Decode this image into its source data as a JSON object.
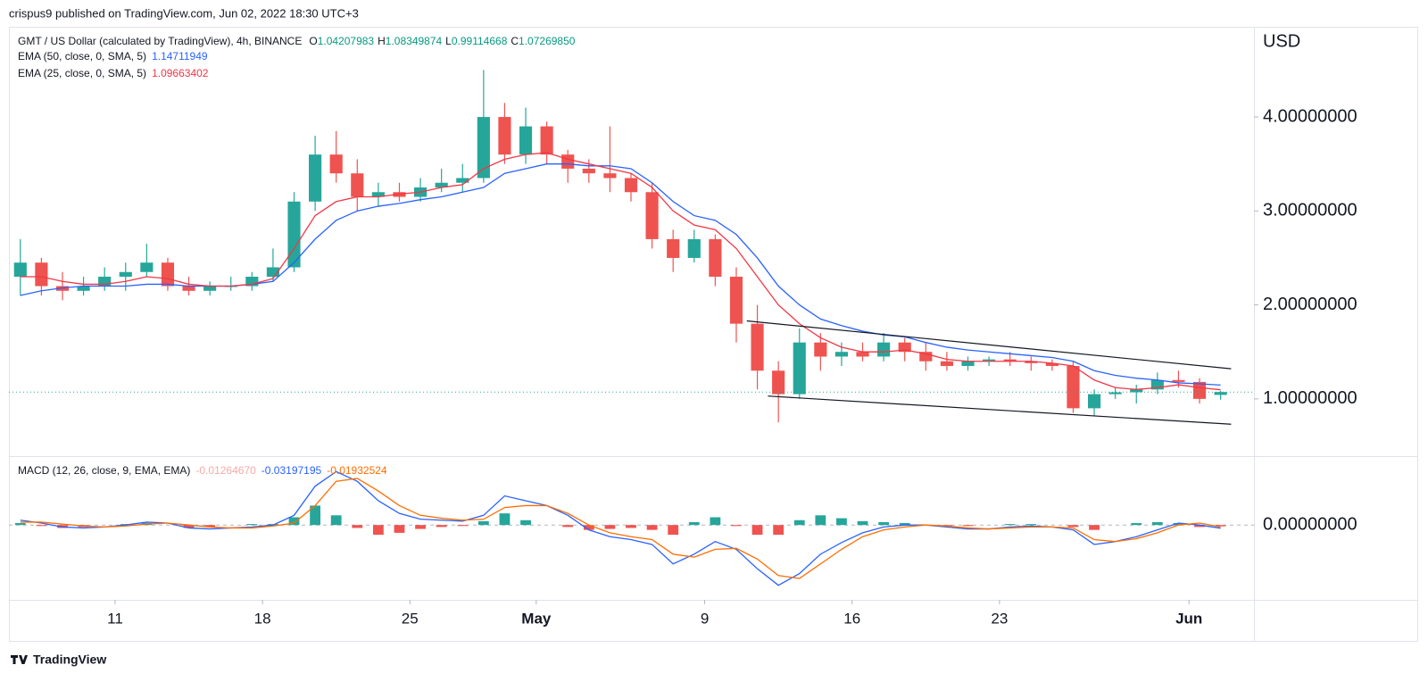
{
  "header": "crispus9 published on TradingView.com, Jun 02, 2022 18:30 UTC+3",
  "footer": "TradingView",
  "chart_data": {
    "type": "candlestick",
    "title": "GMT / US Dollar (calculated by TradingView), 4h, BINANCE",
    "ohlc_legend": [
      {
        "key": "O",
        "text": "1.04207983"
      },
      {
        "key": "H",
        "text": "1.08349874"
      },
      {
        "key": "L",
        "text": "0.99114668"
      },
      {
        "key": "C",
        "text": "1.07269850"
      }
    ],
    "currency": "USD",
    "x": [
      "2022-04-06",
      "2022-04-07",
      "2022-04-08",
      "2022-04-09",
      "2022-04-10",
      "2022-04-11",
      "2022-04-12",
      "2022-04-13",
      "2022-04-14",
      "2022-04-15",
      "2022-04-16",
      "2022-04-17",
      "2022-04-18",
      "2022-04-19",
      "2022-04-20",
      "2022-04-21",
      "2022-04-22",
      "2022-04-23",
      "2022-04-24",
      "2022-04-25",
      "2022-04-26",
      "2022-04-27",
      "2022-04-28",
      "2022-04-29",
      "2022-04-30",
      "2022-05-01",
      "2022-05-02",
      "2022-05-03",
      "2022-05-04",
      "2022-05-05",
      "2022-05-06",
      "2022-05-07",
      "2022-05-08",
      "2022-05-09",
      "2022-05-10",
      "2022-05-11",
      "2022-05-12",
      "2022-05-13",
      "2022-05-14",
      "2022-05-15",
      "2022-05-16",
      "2022-05-17",
      "2022-05-18",
      "2022-05-19",
      "2022-05-20",
      "2022-05-21",
      "2022-05-22",
      "2022-05-23",
      "2022-05-24",
      "2022-05-25",
      "2022-05-26",
      "2022-05-27",
      "2022-05-28",
      "2022-05-29",
      "2022-05-30",
      "2022-05-31",
      "2022-06-01",
      "2022-06-02"
    ],
    "open": [
      2.3,
      2.45,
      2.2,
      2.15,
      2.2,
      2.3,
      2.35,
      2.45,
      2.2,
      2.15,
      2.2,
      2.2,
      2.3,
      2.4,
      3.1,
      3.6,
      3.4,
      3.15,
      3.2,
      3.15,
      3.25,
      3.3,
      3.35,
      4.0,
      3.6,
      3.9,
      3.6,
      3.45,
      3.4,
      3.35,
      3.2,
      2.7,
      2.5,
      2.7,
      2.3,
      1.8,
      1.3,
      1.05,
      1.6,
      1.45,
      1.5,
      1.45,
      1.6,
      1.5,
      1.4,
      1.35,
      1.4,
      1.42,
      1.4,
      1.38,
      1.35,
      0.9,
      1.05,
      1.07,
      1.1,
      1.2,
      1.18,
      1.04207983
    ],
    "high": [
      2.7,
      2.5,
      2.35,
      2.3,
      2.4,
      2.45,
      2.65,
      2.5,
      2.3,
      2.25,
      2.3,
      2.35,
      2.6,
      3.2,
      3.8,
      3.85,
      3.55,
      3.3,
      3.3,
      3.35,
      3.45,
      3.5,
      4.5,
      4.15,
      4.1,
      3.95,
      3.65,
      3.55,
      3.9,
      3.4,
      3.3,
      2.8,
      2.8,
      2.75,
      2.4,
      2.0,
      1.4,
      1.75,
      1.7,
      1.6,
      1.6,
      1.7,
      1.65,
      1.6,
      1.5,
      1.45,
      1.45,
      1.5,
      1.45,
      1.42,
      1.4,
      1.1,
      1.12,
      1.15,
      1.28,
      1.3,
      1.22,
      1.08349874
    ],
    "low": [
      2.1,
      2.1,
      2.05,
      2.1,
      2.15,
      2.15,
      2.3,
      2.15,
      2.1,
      2.1,
      2.15,
      2.15,
      2.25,
      2.35,
      3.0,
      3.3,
      3.0,
      3.05,
      3.1,
      3.1,
      3.2,
      3.2,
      3.3,
      3.5,
      3.5,
      3.5,
      3.3,
      3.3,
      3.2,
      3.1,
      2.6,
      2.35,
      2.45,
      2.2,
      1.6,
      1.1,
      0.75,
      1.0,
      1.3,
      1.35,
      1.4,
      1.4,
      1.4,
      1.3,
      1.3,
      1.3,
      1.35,
      1.35,
      1.3,
      1.3,
      0.85,
      0.82,
      1.0,
      0.95,
      1.05,
      1.12,
      0.95,
      0.99114668
    ],
    "close": [
      2.45,
      2.2,
      2.15,
      2.2,
      2.3,
      2.35,
      2.45,
      2.2,
      2.15,
      2.2,
      2.2,
      2.3,
      2.4,
      3.1,
      3.6,
      3.4,
      3.15,
      3.2,
      3.15,
      3.25,
      3.3,
      3.35,
      4.0,
      3.6,
      3.9,
      3.6,
      3.45,
      3.4,
      3.35,
      3.2,
      2.7,
      2.5,
      2.7,
      2.3,
      1.8,
      1.3,
      1.05,
      1.6,
      1.45,
      1.5,
      1.45,
      1.6,
      1.5,
      1.4,
      1.35,
      1.4,
      1.42,
      1.4,
      1.38,
      1.35,
      0.9,
      1.05,
      1.07,
      1.1,
      1.2,
      1.18,
      1.0,
      1.0726985
    ],
    "up_color": "#26a69a",
    "down_color": "#ef5350",
    "series": [
      {
        "name": "EMA (50, close, 0, SMA, 5)",
        "color": "#2962ff",
        "values": [
          2.1,
          2.15,
          2.18,
          2.2,
          2.2,
          2.2,
          2.22,
          2.22,
          2.2,
          2.2,
          2.2,
          2.22,
          2.25,
          2.45,
          2.7,
          2.9,
          3.0,
          3.05,
          3.08,
          3.12,
          3.15,
          3.2,
          3.25,
          3.4,
          3.45,
          3.5,
          3.5,
          3.48,
          3.48,
          3.45,
          3.3,
          3.1,
          2.95,
          2.9,
          2.75,
          2.5,
          2.2,
          2.0,
          1.85,
          1.78,
          1.72,
          1.68,
          1.66,
          1.6,
          1.55,
          1.52,
          1.5,
          1.48,
          1.46,
          1.44,
          1.4,
          1.3,
          1.25,
          1.22,
          1.2,
          1.17,
          1.16,
          1.14711949
        ]
      },
      {
        "name": "EMA (25, close, 0, SMA, 5)",
        "color": "#f23645",
        "values": [
          2.3,
          2.3,
          2.25,
          2.22,
          2.22,
          2.25,
          2.3,
          2.28,
          2.22,
          2.2,
          2.2,
          2.22,
          2.28,
          2.6,
          2.95,
          3.1,
          3.15,
          3.15,
          3.18,
          3.2,
          3.25,
          3.28,
          3.45,
          3.55,
          3.6,
          3.62,
          3.55,
          3.5,
          3.45,
          3.4,
          3.25,
          3.0,
          2.85,
          2.8,
          2.6,
          2.3,
          2.0,
          1.8,
          1.65,
          1.55,
          1.5,
          1.5,
          1.52,
          1.48,
          1.42,
          1.4,
          1.4,
          1.4,
          1.4,
          1.38,
          1.35,
          1.2,
          1.12,
          1.1,
          1.12,
          1.15,
          1.12,
          1.09663402
        ]
      }
    ],
    "ylim": [
      0.4,
      4.96
    ],
    "yticks": [
      {
        "value": 1,
        "label": "1.00000000"
      },
      {
        "value": 2,
        "label": "2.00000000"
      },
      {
        "value": 3,
        "label": "3.00000000"
      },
      {
        "value": 4,
        "label": "4.00000000"
      }
    ],
    "xlim": [
      "2022-04-06",
      "2022-06-04"
    ],
    "xticks": [
      {
        "value": "2022-04-11",
        "label": "11"
      },
      {
        "value": "2022-04-18",
        "label": "18"
      },
      {
        "value": "2022-04-25",
        "label": "25"
      },
      {
        "value": "2022-05-01",
        "label": "May"
      },
      {
        "value": "2022-05-09",
        "label": "9"
      },
      {
        "value": "2022-05-16",
        "label": "16"
      },
      {
        "value": "2022-05-23",
        "label": "23"
      },
      {
        "value": "2022-06-01",
        "label": "Jun"
      }
    ],
    "trendlines": [
      {
        "x": [
          "2022-05-11",
          "2022-06-03"
        ],
        "y": [
          1.83,
          1.32
        ]
      },
      {
        "x": [
          "2022-05-12",
          "2022-06-03"
        ],
        "y": [
          1.03,
          0.73
        ]
      }
    ],
    "macd": {
      "title": "MACD (12, 26, close, 9, EMA, EMA)",
      "ylim": [
        -0.77,
        0.7
      ],
      "yticks": [
        {
          "value": 0,
          "label": "0.00000000"
        }
      ],
      "histogram": {
        "up_color": "#26a69a",
        "down_color": "#ef5350",
        "legend_color": "#f7a9a7",
        "legend_value": "-0.01264670",
        "values": [
          0.02,
          -0.01,
          -0.03,
          -0.02,
          0,
          0.01,
          0.02,
          0,
          -0.03,
          -0.02,
          0,
          0.01,
          0.01,
          0.08,
          0.2,
          0.1,
          -0.03,
          -0.1,
          -0.08,
          -0.04,
          -0.02,
          -0.01,
          0.04,
          0.12,
          0.05,
          0,
          -0.02,
          -0.05,
          -0.04,
          -0.03,
          -0.05,
          -0.1,
          0.03,
          0.08,
          -0.01,
          -0.1,
          -0.1,
          0.05,
          0.1,
          0.07,
          0.04,
          0.03,
          0.02,
          0,
          -0.01,
          -0.01,
          0,
          0.01,
          0.01,
          0,
          -0.02,
          -0.05,
          0,
          0.02,
          0.03,
          0.02,
          -0.02,
          -0.0126467
        ]
      },
      "macd_line": {
        "color": "#2962ff",
        "values": [
          0.05,
          0.02,
          -0.02,
          -0.03,
          -0.02,
          0,
          0.03,
          0.02,
          -0.03,
          -0.04,
          -0.03,
          -0.02,
          0,
          0.1,
          0.4,
          0.55,
          0.45,
          0.25,
          0.12,
          0.06,
          0.05,
          0.04,
          0.1,
          0.3,
          0.25,
          0.2,
          0.1,
          -0.05,
          -0.12,
          -0.15,
          -0.2,
          -0.4,
          -0.3,
          -0.17,
          -0.25,
          -0.45,
          -0.62,
          -0.5,
          -0.3,
          -0.18,
          -0.08,
          -0.02,
          0,
          0,
          -0.02,
          -0.04,
          -0.04,
          -0.02,
          -0.01,
          -0.02,
          -0.05,
          -0.2,
          -0.17,
          -0.12,
          -0.05,
          0.02,
          0,
          -0.03197195
        ]
      },
      "signal_line": {
        "color": "#ff6d00",
        "values": [
          0.03,
          0.03,
          0.01,
          -0.01,
          -0.02,
          -0.01,
          0.01,
          0.02,
          0,
          -0.02,
          -0.03,
          -0.03,
          -0.01,
          0.02,
          0.2,
          0.45,
          0.48,
          0.35,
          0.2,
          0.1,
          0.07,
          0.05,
          0.06,
          0.18,
          0.2,
          0.2,
          0.12,
          0,
          -0.08,
          -0.12,
          -0.15,
          -0.3,
          -0.33,
          -0.25,
          -0.24,
          -0.35,
          -0.52,
          -0.55,
          -0.4,
          -0.25,
          -0.12,
          -0.05,
          -0.02,
          0,
          -0.01,
          -0.03,
          -0.04,
          -0.03,
          -0.02,
          -0.02,
          -0.03,
          -0.15,
          -0.17,
          -0.14,
          -0.08,
          0,
          0.02,
          -0.01932524
        ]
      }
    }
  }
}
